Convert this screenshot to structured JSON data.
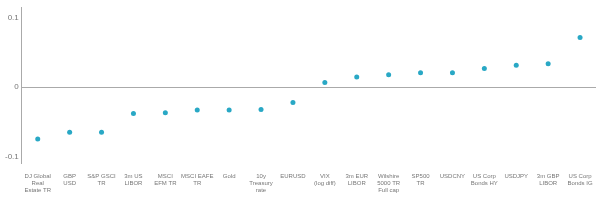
{
  "chart_data": {
    "type": "scatter",
    "categories": [
      "DJ Global\nReal\nEstate TR",
      "GBP\nUSD",
      "S&P GSCI\nTR",
      "3m US\nLIBOR",
      "MSCI\nEFM TR",
      "MSCI EAFE\nTR",
      "Gold",
      "10y\nTreasury\nrate",
      "EURUSD",
      "VIX\n(log diff)",
      "3m EUR\nLIBOR",
      "Wilshire\n5000 TR\nFull cap",
      "SP500\nTR",
      "USDCNY",
      "US Corp\nBonds HY",
      "USDJPY",
      "3m GBP\nLIBOR",
      "US Corp\nBonds IG"
    ],
    "values": [
      -0.075,
      -0.065,
      -0.065,
      -0.038,
      -0.037,
      -0.033,
      -0.033,
      -0.032,
      -0.022,
      0.007,
      0.015,
      0.018,
      0.021,
      0.021,
      0.027,
      0.032,
      0.034,
      0.072
    ],
    "color": "#29a8c5",
    "ylim": [
      -0.11,
      0.115
    ],
    "yticks": [
      -0.1,
      0,
      0.1
    ],
    "grid": false
  }
}
